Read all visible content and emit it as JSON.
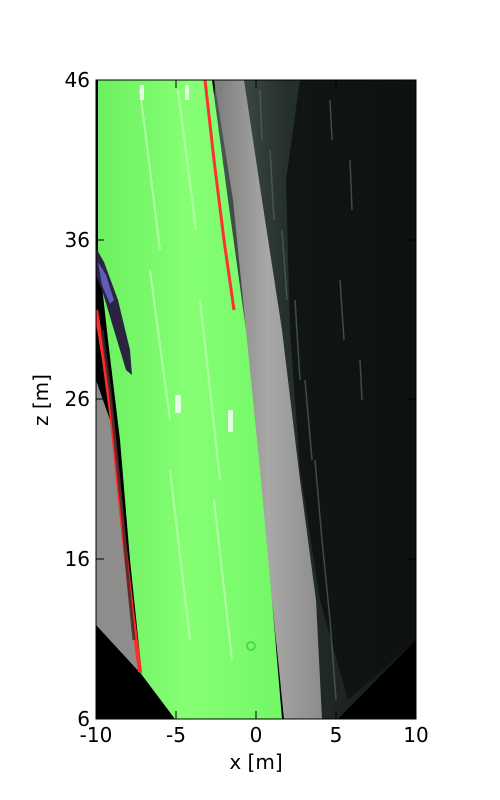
{
  "figure": {
    "xlabel": "x [m]",
    "ylabel": "z [m]",
    "x_ticks": [
      "-10",
      "-5",
      "0",
      "5",
      "10"
    ],
    "y_ticks": [
      "46",
      "36",
      "26",
      "16",
      "6"
    ]
  },
  "chart_data": {
    "type": "heatmap",
    "xlabel": "x [m]",
    "ylabel": "z [m]",
    "xlim": [
      -10,
      10
    ],
    "ylim": [
      6,
      46
    ],
    "x_ticks": [
      -10,
      -5,
      0,
      5,
      10
    ],
    "y_ticks": [
      46,
      36,
      26,
      16,
      6
    ],
    "grid": false,
    "colors": {
      "road_overlay": "#7dff6a",
      "road_boundary": "#ff2a2a",
      "sidewalk": "#9a9a98",
      "vegetation": "#2f3b36",
      "background": "#000000"
    }
  }
}
